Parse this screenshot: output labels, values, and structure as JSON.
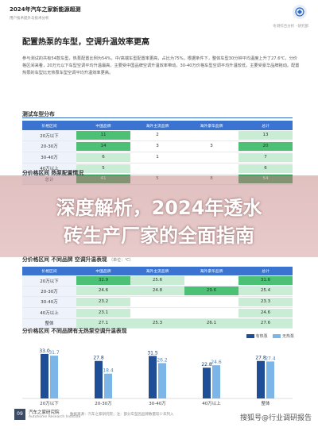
{
  "header": {
    "title": "2024年汽车之家新能源超测",
    "subtitle": "用户技术提升与技术分析",
    "right": "冬测综合分析 · 研究部"
  },
  "section": {
    "title": "配置热泵的车型，空调升温效率更高",
    "paragraph": "参与测试的共有54款车型，热泵配置比例为54%，中/高端车型配置率更高，占比为75%。根据条件下，整体车型30分钟平均温度上升了27.6℃，分价格区间来看，20万元以下车型空调平均升温最高，主要受中国品牌空调升温效率带动，30-40万价格车型空调平均升温较低，主要受豪华品牌拖动。配置热泵的车型比无热泵车型空调平均升温效率更高。"
  },
  "table1": {
    "title": "测试车型分布",
    "headers": [
      "价格区间",
      "中国品牌",
      "海外主流品牌",
      "海外豪华品牌",
      "总计"
    ],
    "rows": [
      {
        "label": "20万以下",
        "c1": "11",
        "c2": "2",
        "c3": "",
        "t": "13"
      },
      {
        "label": "20-30万",
        "c1": "14",
        "c2": "3",
        "c3": "3",
        "t": "20"
      },
      {
        "label": "30-40万",
        "c1": "6",
        "c2": "1",
        "c3": "",
        "t": "7"
      },
      {
        "label": "40万以上",
        "c1": "5",
        "c2": "",
        "c3": "",
        "t": "6"
      },
      {
        "label": "总计",
        "c1": "41",
        "c2": "5",
        "c3": "8",
        "t": "54"
      }
    ]
  },
  "banner": {
    "line1": "深度解析，2024年透水",
    "line2": "砖生产厂家的全面指南"
  },
  "subtitles": {
    "heatpump": "分价格区间 热泵配置情况",
    "brand_perf": "分价格区间 不同品牌 空调升温表现",
    "brand_unit": "（单位：℃）",
    "chart": "分价格区间 不同品牌有无热泵空调升温表现"
  },
  "table2": {
    "headers": [
      "价格区间",
      "中国品牌",
      "海外主流品牌",
      "海外豪华品牌",
      "总计"
    ],
    "rows": [
      {
        "label": "20万以下",
        "c1": "32.9",
        "c2": "25.6",
        "c3": "",
        "t": "31.6"
      },
      {
        "label": "20-30万",
        "c1": "24.6",
        "c2": "24.8",
        "c3": "29.6",
        "t": "25.4"
      },
      {
        "label": "30-40万",
        "c1": "23.2",
        "c2": "",
        "c3": "",
        "t": "23.3"
      },
      {
        "label": "40万以上",
        "c1": "23.1",
        "c2": "",
        "c3": "",
        "t": "24.6"
      },
      {
        "label": "整体",
        "c1": "27.1",
        "c2": "25.3",
        "c3": "26.1",
        "t": "27.6"
      }
    ]
  },
  "chart_data": {
    "type": "bar",
    "title": "分价格区间 不同品牌有无热泵空调升温表现",
    "categories": [
      "20万以下",
      "20-30万",
      "30-40万",
      "40万以上",
      "整体"
    ],
    "series": [
      {
        "name": "有热泵",
        "values": [
          33.0,
          27.8,
          31.5,
          22.8,
          27.8
        ],
        "color": "#1f4e96"
      },
      {
        "name": "无热泵",
        "values": [
          31.7,
          18.4,
          26.2,
          24.6,
          27.4
        ],
        "color": "#7cb6e8"
      }
    ],
    "ylim": [
      0,
      40
    ],
    "legend": "top-right"
  },
  "footer": {
    "page": "09",
    "org": "汽车之家研究院",
    "org_en": "Autohome Research Institute",
    "note": "数据来源：汽车之家研究院；注：部分车型因品牌数量较少未列入",
    "watermark": "搜狐号@行业调研报告"
  }
}
